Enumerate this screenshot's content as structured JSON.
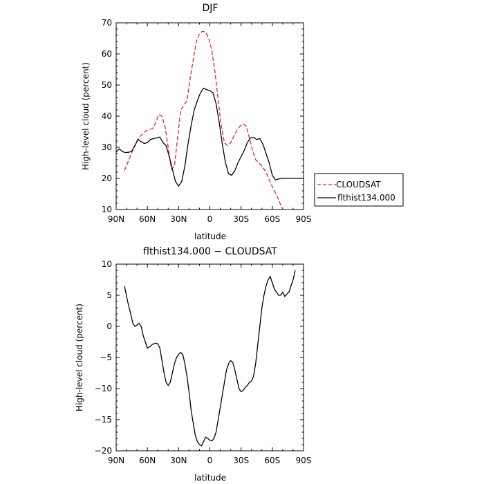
{
  "chart_data": [
    {
      "type": "line",
      "title": "DJF",
      "xlabel": "latitude",
      "ylabel": "High-level cloud (percent)",
      "xlim": [
        90,
        -90
      ],
      "ylim": [
        10,
        70
      ],
      "xticks": [
        90,
        60,
        30,
        0,
        -30,
        -60,
        -90
      ],
      "xtick_labels": [
        "90N",
        "60N",
        "30N",
        "0",
        "30S",
        "60S",
        "90S"
      ],
      "yticks": [
        10,
        20,
        30,
        40,
        50,
        60,
        70
      ],
      "ytick_labels": [
        "10",
        "20",
        "30",
        "40",
        "50",
        "60",
        "70"
      ],
      "legend_position": "right",
      "series": [
        {
          "name": "CLOUDSAT",
          "color": "#e8202a",
          "dash": true,
          "x": [
            82,
            79,
            76,
            73,
            70,
            67,
            64,
            61,
            58,
            55,
            52,
            49,
            46,
            43,
            40,
            37,
            34,
            31,
            28,
            25,
            22,
            19,
            16,
            13,
            10,
            7,
            4,
            1,
            -2,
            -5,
            -8,
            -11,
            -14,
            -17,
            -20,
            -23,
            -26,
            -29,
            -32,
            -35,
            -38,
            -41,
            -44,
            -47,
            -50,
            -53,
            -56,
            -59,
            -62,
            -65,
            -68,
            -71,
            -74,
            -77,
            -80,
            -82
          ],
          "y": [
            22.5,
            25,
            27.5,
            30,
            32,
            33.5,
            34.5,
            35.3,
            35.7,
            36,
            38,
            40.5,
            40,
            36.5,
            30,
            23,
            24,
            33,
            42,
            43.5,
            45,
            52,
            58,
            64,
            66.5,
            67.3,
            67,
            65,
            61,
            54,
            45,
            37,
            31.5,
            30.5,
            31.5,
            33.5,
            35.5,
            36.8,
            37.5,
            36.8,
            33,
            29,
            26,
            25,
            24,
            22.5,
            20.5,
            18,
            16,
            14,
            11.5,
            9.5,
            8,
            6.5,
            5,
            4
          ]
        },
        {
          "name": "flthist134.000",
          "color": "#000000",
          "dash": false,
          "x": [
            90,
            87,
            84,
            81,
            78,
            75,
            72,
            69,
            66,
            63,
            60,
            57,
            54,
            51,
            48,
            45,
            42,
            39,
            36,
            33,
            30,
            27,
            24,
            21,
            18,
            15,
            12,
            9,
            6,
            3,
            0,
            -3,
            -6,
            -9,
            -12,
            -15,
            -18,
            -21,
            -24,
            -27,
            -30,
            -33,
            -36,
            -39,
            -42,
            -45,
            -48,
            -51,
            -54,
            -57,
            -60,
            -63,
            -66,
            -69,
            -72,
            -75,
            -78,
            -81,
            -84,
            -87,
            -90
          ],
          "y": [
            28.5,
            29.5,
            28.6,
            28.3,
            28.4,
            28.7,
            30.5,
            32.5,
            31.8,
            31.2,
            31.5,
            32.5,
            32.8,
            33,
            33.3,
            31.5,
            30.5,
            27,
            23,
            19,
            17.5,
            19,
            24,
            31,
            37,
            42,
            45,
            47.5,
            49,
            48.5,
            48.2,
            47.5,
            44,
            38,
            31,
            25,
            21.5,
            21,
            22.5,
            25,
            27,
            29,
            31.5,
            33,
            33.2,
            32.5,
            32.8,
            31,
            28,
            25,
            21,
            19.5,
            19.8,
            20,
            20,
            20,
            20,
            20,
            20,
            20,
            20
          ]
        }
      ]
    },
    {
      "type": "line",
      "title": "flthist134.000 − CLOUDSAT",
      "xlabel": "latitude",
      "ylabel": "High-level cloud (percent)",
      "xlim": [
        90,
        -90
      ],
      "ylim": [
        -20,
        10
      ],
      "xticks": [
        90,
        60,
        30,
        0,
        -30,
        -60,
        -90
      ],
      "xtick_labels": [
        "90N",
        "60N",
        "30N",
        "0",
        "30S",
        "60S",
        "90S"
      ],
      "yticks": [
        -20,
        -15,
        -10,
        -5,
        0,
        5,
        10
      ],
      "ytick_labels": [
        "−20",
        "−15",
        "−10",
        "−5",
        "0",
        "5",
        "10"
      ],
      "series": [
        {
          "color": "#000000",
          "dash": false,
          "x": [
            82,
            79,
            76,
            74,
            72,
            70,
            68,
            66,
            64,
            62,
            60,
            58,
            56,
            54,
            52,
            50,
            48,
            46,
            44,
            42,
            40,
            38,
            36,
            34,
            32,
            30,
            28,
            26,
            24,
            22,
            20,
            18,
            16,
            14,
            12,
            10,
            8,
            6,
            4,
            2,
            0,
            -2,
            -4,
            -6,
            -8,
            -10,
            -12,
            -14,
            -16,
            -18,
            -20,
            -22,
            -24,
            -26,
            -28,
            -30,
            -32,
            -34,
            -36,
            -38,
            -40,
            -42,
            -44,
            -46,
            -48,
            -50,
            -52,
            -54,
            -56,
            -58,
            -60,
            -62,
            -64,
            -66,
            -68,
            -70,
            -72,
            -74,
            -76,
            -78,
            -80,
            -82
          ],
          "y": [
            6.5,
            4,
            2,
            0.5,
            0,
            0.2,
            0.5,
            0,
            -1.5,
            -2.5,
            -3.5,
            -3.3,
            -3,
            -2.8,
            -2.7,
            -2.8,
            -3.5,
            -5.5,
            -7.5,
            -9,
            -9.5,
            -9,
            -7.5,
            -6,
            -5,
            -4.5,
            -4.2,
            -4.5,
            -6,
            -8,
            -10.5,
            -13.5,
            -15.5,
            -17.5,
            -18.5,
            -19,
            -19.2,
            -18.5,
            -17.8,
            -18,
            -18.3,
            -18.4,
            -18,
            -17,
            -15,
            -13,
            -11,
            -9,
            -7,
            -6,
            -5.5,
            -5.8,
            -7,
            -8.5,
            -10,
            -10.5,
            -10.3,
            -9.8,
            -9.5,
            -9,
            -8.8,
            -8,
            -6,
            -3,
            0,
            3,
            5,
            6.5,
            7.5,
            8,
            7,
            6,
            5.5,
            5,
            5,
            5.5,
            4.8,
            5.2,
            5.5,
            6.5,
            7.5,
            9
          ]
        }
      ]
    }
  ]
}
